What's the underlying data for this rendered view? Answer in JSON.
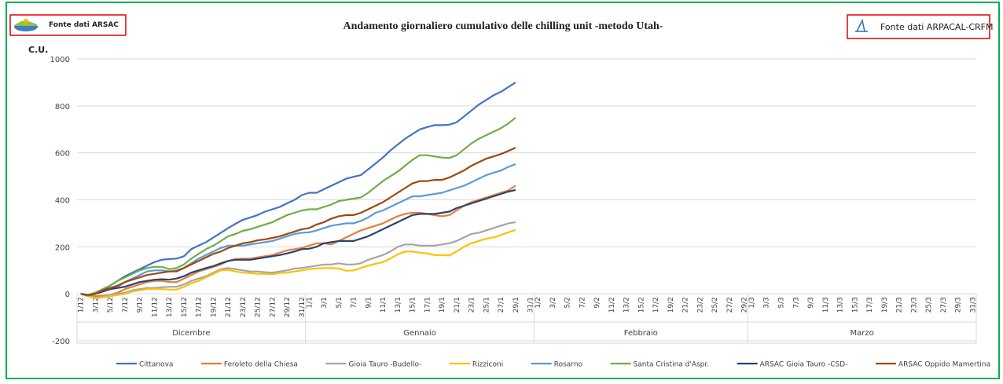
{
  "chart_data": {
    "type": "line",
    "title": "Andamento giornaliero cumulativo delle chilling unit -metodo Utah-",
    "source_left": "Fonte dati ARSAC",
    "source_right": "Fonte dati ARPACAL-CRFM",
    "ylabel": "C.U.",
    "ylim": [
      -200,
      1000
    ],
    "yticks": [
      -200,
      0,
      200,
      400,
      600,
      800,
      1000
    ],
    "grid": true,
    "legend": "bottom",
    "categories": [
      "1/12",
      null,
      "3/12",
      null,
      "5/12",
      null,
      "7/12",
      null,
      "9/12",
      null,
      "11/12",
      null,
      "13/12",
      null,
      "15/12",
      null,
      "17/12",
      null,
      "19/12",
      null,
      "21/12",
      null,
      "23/12",
      null,
      "25/12",
      null,
      "27/12",
      null,
      "29/12",
      null,
      "31/12",
      "1/1",
      null,
      "3/1",
      null,
      "5/1",
      null,
      "7/1",
      null,
      "9/1",
      null,
      "11/1",
      null,
      "13/1",
      null,
      "15/1",
      null,
      "17/1",
      null,
      "19/1",
      null,
      "21/1",
      null,
      "23/1",
      null,
      "25/1",
      null,
      "27/1",
      null,
      "29/1",
      null,
      "31/1",
      "1/2",
      null,
      "3/2",
      null,
      "5/2",
      null,
      "7/2",
      null,
      "9/2",
      null,
      "11/2",
      null,
      "13/2",
      null,
      "15/2",
      null,
      "17/2",
      null,
      "19/2",
      null,
      "21/2",
      null,
      "23/2",
      null,
      "25/2",
      null,
      "27/2",
      null,
      "29/2",
      "1/3",
      null,
      "3/3",
      null,
      "5/3",
      null,
      "7/3",
      null,
      "9/3",
      null,
      "11/3",
      null,
      "13/3",
      null,
      "15/3",
      null,
      "17/3",
      null,
      "19/3",
      null,
      "21/3",
      null,
      "23/3",
      null,
      "25/3",
      null,
      "27/3",
      null,
      "29/3",
      null,
      "31/3"
    ],
    "month_groups": [
      {
        "label": "Dicembre",
        "count": 31
      },
      {
        "label": "Gennaio",
        "count": 31
      },
      {
        "label": "Febbraio",
        "count": 29
      },
      {
        "label": "Marzo",
        "count": 31
      }
    ],
    "series": [
      {
        "name": "Cittanova",
        "color": "#4472c4",
        "values": [
          0,
          -5,
          5,
          20,
          35,
          55,
          75,
          90,
          105,
          120,
          135,
          145,
          148,
          150,
          160,
          190,
          205,
          220,
          240,
          260,
          280,
          298,
          315,
          325,
          335,
          350,
          360,
          370,
          385,
          400,
          420,
          430,
          430,
          445,
          460,
          475,
          490,
          498,
          505,
          530,
          555,
          580,
          610,
          635,
          660,
          680,
          700,
          710,
          718,
          718,
          720,
          730,
          755,
          780,
          805,
          825,
          845,
          860,
          880,
          900,
          null,
          null,
          null,
          null,
          null,
          null,
          null,
          null,
          null,
          null,
          null,
          null,
          null,
          null,
          null,
          null,
          null,
          null,
          null,
          null,
          null,
          null,
          null,
          null,
          null,
          null,
          null,
          null,
          null,
          null,
          null,
          null,
          null,
          null,
          null,
          null,
          null,
          null,
          null,
          null,
          null,
          null,
          null,
          null,
          null,
          null,
          null,
          null,
          null,
          null,
          null,
          null,
          null,
          null,
          null,
          null,
          null,
          null,
          null,
          null,
          null,
          null
        ]
      },
      {
        "name": "Feroleto della Chiesa",
        "color": "#ed7d31",
        "values": [
          0,
          -5,
          -10,
          -8,
          -5,
          5,
          20,
          30,
          40,
          50,
          55,
          55,
          50,
          50,
          65,
          80,
          95,
          105,
          115,
          125,
          140,
          148,
          150,
          150,
          155,
          160,
          165,
          175,
          185,
          190,
          195,
          205,
          215,
          215,
          210,
          225,
          240,
          255,
          270,
          280,
          290,
          300,
          315,
          330,
          340,
          345,
          345,
          340,
          335,
          330,
          335,
          355,
          375,
          390,
          400,
          410,
          420,
          430,
          440,
          460,
          null,
          null,
          null,
          null,
          null,
          null,
          null,
          null,
          null,
          null,
          null,
          null,
          null,
          null,
          null,
          null,
          null,
          null,
          null,
          null,
          null,
          null,
          null,
          null,
          null,
          null,
          null,
          null,
          null,
          null,
          null,
          null,
          null,
          null,
          null,
          null,
          null,
          null,
          null,
          null,
          null,
          null,
          null,
          null,
          null,
          null,
          null,
          null,
          null,
          null,
          null,
          null,
          null,
          null,
          null,
          null,
          null,
          null,
          null,
          null,
          null,
          null
        ]
      },
      {
        "name": "Gioia Tauro -Budello-",
        "color": "#a5a5a5",
        "values": [
          0,
          -10,
          -15,
          -12,
          -5,
          0,
          5,
          15,
          20,
          25,
          25,
          28,
          30,
          30,
          40,
          55,
          65,
          75,
          90,
          105,
          110,
          105,
          100,
          95,
          95,
          92,
          90,
          95,
          100,
          108,
          110,
          115,
          120,
          125,
          125,
          130,
          125,
          125,
          130,
          145,
          155,
          165,
          180,
          200,
          210,
          210,
          205,
          205,
          205,
          210,
          215,
          225,
          240,
          255,
          260,
          270,
          280,
          290,
          300,
          305,
          null,
          null,
          null,
          null,
          null,
          null,
          null,
          null,
          null,
          null,
          null,
          null,
          null,
          null,
          null,
          null,
          null,
          null,
          null,
          null,
          null,
          null,
          null,
          null,
          null,
          null,
          null,
          null,
          null,
          null,
          null,
          null,
          null,
          null,
          null,
          null,
          null,
          null,
          null,
          null,
          null,
          null,
          null,
          null,
          null,
          null,
          null,
          null,
          null,
          null,
          null,
          null,
          null,
          null,
          null,
          null,
          null,
          null,
          null,
          null,
          null,
          null
        ]
      },
      {
        "name": "Rizziconi",
        "color": "#ffc000",
        "values": [
          0,
          -10,
          -20,
          -15,
          -10,
          -5,
          0,
          10,
          15,
          20,
          22,
          20,
          18,
          18,
          30,
          45,
          55,
          70,
          85,
          100,
          102,
          95,
          90,
          88,
          85,
          85,
          83,
          88,
          90,
          95,
          100,
          105,
          108,
          110,
          110,
          108,
          98,
          100,
          110,
          120,
          128,
          135,
          150,
          168,
          180,
          180,
          175,
          172,
          165,
          165,
          163,
          180,
          200,
          215,
          225,
          235,
          240,
          250,
          262,
          272,
          null,
          null,
          null,
          null,
          null,
          null,
          null,
          null,
          null,
          null,
          null,
          null,
          null,
          null,
          null,
          null,
          null,
          null,
          null,
          null,
          null,
          null,
          null,
          null,
          null,
          null,
          null,
          null,
          null,
          null,
          null,
          null,
          null,
          null,
          null,
          null,
          null,
          null,
          null,
          null,
          null,
          null,
          null,
          null,
          null,
          null,
          null,
          null,
          null,
          null,
          null,
          null,
          null,
          null,
          null,
          null,
          null,
          null,
          null,
          null,
          null,
          null
        ]
      },
      {
        "name": "Rosarno",
        "color": "#5b9bd5",
        "values": [
          0,
          -8,
          0,
          10,
          20,
          30,
          50,
          65,
          80,
          95,
          100,
          100,
          95,
          100,
          110,
          130,
          150,
          165,
          180,
          195,
          205,
          205,
          205,
          210,
          215,
          220,
          225,
          235,
          245,
          255,
          260,
          262,
          270,
          280,
          290,
          295,
          300,
          300,
          310,
          325,
          345,
          355,
          370,
          385,
          400,
          415,
          415,
          420,
          425,
          430,
          440,
          450,
          460,
          475,
          490,
          505,
          515,
          525,
          540,
          552,
          null,
          null,
          null,
          null,
          null,
          null,
          null,
          null,
          null,
          null,
          null,
          null,
          null,
          null,
          null,
          null,
          null,
          null,
          null,
          null,
          null,
          null,
          null,
          null,
          null,
          null,
          null,
          null,
          null,
          null,
          null,
          null,
          null,
          null,
          null,
          null,
          null,
          null,
          null,
          null,
          null,
          null,
          null,
          null,
          null,
          null,
          null,
          null,
          null,
          null,
          null,
          null,
          null,
          null,
          null,
          null,
          null,
          null,
          null,
          null,
          null,
          null
        ]
      },
      {
        "name": "Santa Cristina d'Aspr.",
        "color": "#70ad47",
        "values": [
          0,
          -5,
          5,
          20,
          35,
          55,
          70,
          85,
          100,
          110,
          115,
          115,
          105,
          110,
          125,
          150,
          170,
          190,
          205,
          225,
          245,
          255,
          268,
          275,
          285,
          295,
          305,
          320,
          335,
          345,
          355,
          360,
          360,
          370,
          380,
          395,
          400,
          405,
          410,
          430,
          455,
          480,
          500,
          520,
          545,
          570,
          590,
          590,
          585,
          580,
          578,
          590,
          615,
          640,
          660,
          675,
          690,
          705,
          725,
          750,
          null,
          null,
          null,
          null,
          null,
          null,
          null,
          null,
          null,
          null,
          null,
          null,
          null,
          null,
          null,
          null,
          null,
          null,
          null,
          null,
          null,
          null,
          null,
          null,
          null,
          null,
          null,
          null,
          null,
          null,
          null,
          null,
          null,
          null,
          null,
          null,
          null,
          null,
          null,
          null,
          null,
          null,
          null,
          null,
          null,
          null,
          null,
          null,
          null,
          null,
          null,
          null,
          null,
          null,
          null,
          null,
          null,
          null,
          null,
          null,
          null,
          null
        ]
      },
      {
        "name": "ARSAC Gioia Tauro -CSD-",
        "color": "#264478",
        "values": [
          0,
          -5,
          0,
          10,
          20,
          25,
          30,
          40,
          50,
          55,
          60,
          62,
          60,
          65,
          75,
          90,
          100,
          110,
          118,
          130,
          140,
          145,
          145,
          145,
          150,
          155,
          160,
          165,
          172,
          180,
          190,
          192,
          200,
          215,
          220,
          225,
          225,
          225,
          235,
          245,
          260,
          275,
          290,
          305,
          320,
          335,
          340,
          340,
          340,
          345,
          350,
          365,
          375,
          385,
          395,
          405,
          415,
          425,
          435,
          442,
          null,
          null,
          null,
          null,
          null,
          null,
          null,
          null,
          null,
          null,
          null,
          null,
          null,
          null,
          null,
          null,
          null,
          null,
          null,
          null,
          null,
          null,
          null,
          null,
          null,
          null,
          null,
          null,
          null,
          null,
          null,
          null,
          null,
          null,
          null,
          null,
          null,
          null,
          null,
          null,
          null,
          null,
          null,
          null,
          null,
          null,
          null,
          null,
          null,
          null,
          null,
          null,
          null,
          null,
          null,
          null,
          null,
          null,
          null,
          null,
          null,
          null
        ]
      },
      {
        "name": "ARSAC Oppido Mamertina",
        "color": "#9e480e",
        "values": [
          0,
          -5,
          0,
          15,
          25,
          35,
          50,
          60,
          70,
          80,
          85,
          90,
          95,
          95,
          110,
          125,
          140,
          155,
          170,
          180,
          195,
          205,
          215,
          220,
          228,
          232,
          238,
          245,
          255,
          265,
          275,
          280,
          295,
          305,
          320,
          330,
          335,
          335,
          345,
          360,
          375,
          390,
          410,
          430,
          450,
          470,
          480,
          480,
          485,
          485,
          495,
          510,
          525,
          545,
          560,
          575,
          585,
          595,
          608,
          622,
          null,
          null,
          null,
          null,
          null,
          null,
          null,
          null,
          null,
          null,
          null,
          null,
          null,
          null,
          null,
          null,
          null,
          null,
          null,
          null,
          null,
          null,
          null,
          null,
          null,
          null,
          null,
          null,
          null,
          null,
          null,
          null,
          null,
          null,
          null,
          null,
          null,
          null,
          null,
          null,
          null,
          null,
          null,
          null,
          null,
          null,
          null,
          null,
          null,
          null,
          null,
          null,
          null,
          null,
          null,
          null,
          null,
          null,
          null,
          null,
          null,
          null
        ]
      }
    ]
  }
}
